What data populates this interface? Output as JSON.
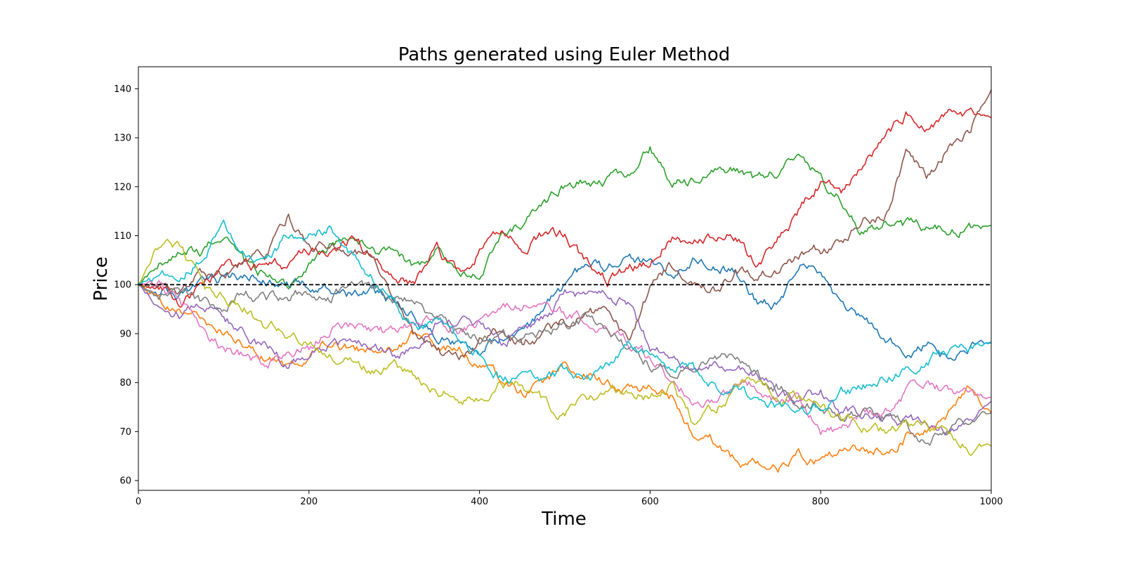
{
  "chart_data": {
    "type": "line",
    "title": "Paths generated using Euler Method",
    "xlabel": "Time",
    "ylabel": "Price",
    "xlim": [
      0,
      1000
    ],
    "ylim": [
      58,
      144.5
    ],
    "xticks": [
      "0",
      "200",
      "400",
      "600",
      "800",
      "1000"
    ],
    "yticks": [
      "60",
      "70",
      "80",
      "90",
      "100",
      "110",
      "120",
      "130",
      "140"
    ],
    "grid": false,
    "reference_line": {
      "y": 100,
      "style": "dashed",
      "color": "#000000"
    },
    "x": [
      0,
      25,
      50,
      75,
      100,
      125,
      150,
      175,
      200,
      225,
      250,
      275,
      300,
      325,
      350,
      375,
      400,
      425,
      450,
      475,
      500,
      525,
      550,
      575,
      600,
      625,
      650,
      675,
      700,
      725,
      750,
      775,
      800,
      825,
      850,
      875,
      900,
      925,
      950,
      975,
      1000
    ],
    "series": [
      {
        "color": "#1f77b4",
        "values": [
          100,
          99,
          98,
          100,
          101,
          102,
          101,
          100,
          100,
          99,
          98,
          99,
          96,
          93,
          90,
          88,
          87,
          90,
          90,
          94,
          100,
          104,
          103,
          106,
          105,
          103,
          105,
          104,
          103,
          97,
          96,
          104,
          102,
          96,
          94,
          87,
          87,
          88,
          85,
          88,
          88
        ]
      },
      {
        "color": "#ff7f0e",
        "values": [
          100,
          97,
          95,
          92,
          90,
          88,
          85,
          83,
          86,
          89,
          87,
          86,
          88,
          90,
          88,
          87,
          84,
          81,
          78,
          80,
          83,
          82,
          80,
          78,
          79,
          77,
          70,
          68,
          64,
          63,
          62,
          65,
          64,
          66,
          67,
          66,
          69,
          70,
          74,
          78,
          74
        ]
      },
      {
        "color": "#2ca02c",
        "values": [
          100,
          104,
          106,
          107,
          110,
          104,
          102,
          99,
          104,
          108,
          110,
          107,
          106,
          103,
          107,
          103,
          102,
          110,
          112,
          116,
          120,
          121,
          121,
          123,
          128,
          120,
          121,
          123,
          124,
          121,
          123,
          127,
          122,
          117,
          111,
          113,
          112,
          111,
          111,
          111,
          112
        ]
      },
      {
        "color": "#d62728",
        "values": [
          100,
          99,
          96,
          100,
          103,
          104,
          103,
          104,
          107,
          107,
          109,
          106,
          101,
          101,
          107,
          102,
          107,
          110,
          108,
          110,
          110,
          104,
          101,
          104,
          104,
          110,
          108,
          109,
          110,
          104,
          110,
          115,
          121,
          119,
          125,
          130,
          135,
          133,
          135,
          135,
          134
        ]
      },
      {
        "color": "#9467bd",
        "values": [
          100,
          96,
          94,
          96,
          94,
          90,
          87,
          84,
          86,
          88,
          88,
          87,
          86,
          88,
          93,
          92,
          92,
          88,
          90,
          93,
          98,
          97,
          98,
          96,
          87,
          86,
          81,
          84,
          84,
          81,
          78,
          76,
          78,
          74,
          73,
          73,
          72,
          72,
          70,
          72,
          76
        ]
      },
      {
        "color": "#8c564b",
        "values": [
          100,
          100,
          98,
          102,
          102,
          104,
          106,
          114,
          108,
          108,
          106,
          106,
          96,
          90,
          86,
          84,
          88,
          90,
          88,
          90,
          92,
          94,
          95,
          88,
          99,
          104,
          102,
          99,
          103,
          102,
          103,
          106,
          107,
          108,
          114,
          114,
          126,
          122,
          128,
          132,
          140
        ]
      },
      {
        "color": "#e377c2",
        "values": [
          100,
          100,
          96,
          90,
          87,
          85,
          84,
          86,
          87,
          91,
          92,
          90,
          90,
          92,
          94,
          91,
          93,
          96,
          96,
          96,
          94,
          93,
          91,
          89,
          85,
          80,
          77,
          77,
          79,
          79,
          77,
          76,
          70,
          70,
          74,
          74,
          78,
          80,
          78,
          77,
          77
        ]
      },
      {
        "color": "#7f7f7f",
        "values": [
          100,
          98,
          98,
          96,
          96,
          99,
          97,
          97,
          99,
          98,
          99,
          99,
          98,
          96,
          93,
          90,
          89,
          89,
          89,
          91,
          92,
          93,
          91,
          87,
          84,
          83,
          82,
          85,
          85,
          81,
          79,
          76,
          76,
          73,
          74,
          73,
          71,
          68,
          70,
          72,
          74
        ]
      },
      {
        "color": "#bcbd22",
        "values": [
          100,
          108,
          107,
          100,
          97,
          96,
          91,
          90,
          88,
          86,
          84,
          83,
          84,
          81,
          79,
          77,
          76,
          80,
          80,
          76,
          73,
          77,
          78,
          78,
          77,
          80,
          72,
          74,
          79,
          80,
          76,
          77,
          76,
          73,
          71,
          70,
          71,
          71,
          69,
          67,
          67
        ]
      },
      {
        "color": "#17becf",
        "values": [
          100,
          101,
          103,
          106,
          113,
          106,
          106,
          110,
          110,
          112,
          106,
          101,
          97,
          90,
          94,
          89,
          86,
          81,
          81,
          80,
          82,
          81,
          83,
          88,
          86,
          84,
          83,
          79,
          79,
          76,
          75,
          75,
          75,
          78,
          79,
          81,
          82,
          84,
          87,
          87,
          88
        ]
      }
    ]
  }
}
